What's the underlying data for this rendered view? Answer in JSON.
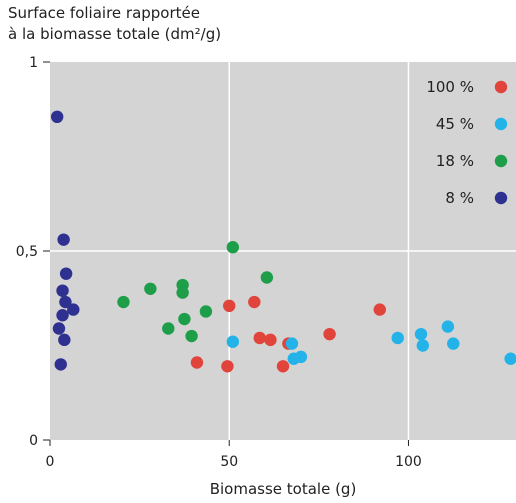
{
  "chart_data": {
    "type": "scatter",
    "ylabel_lines": [
      "Surface foliaire rapportée",
      "à la biomasse totale (dm²/g)"
    ],
    "xlabel": "Biomasse totale (g)",
    "xlim": [
      0,
      130
    ],
    "ylim": [
      0,
      1
    ],
    "x_ticks": [
      0,
      50,
      100
    ],
    "x_tick_labels": [
      "0",
      "50",
      "100"
    ],
    "y_ticks": [
      0,
      0.5,
      1
    ],
    "y_tick_labels": [
      "0",
      "0,5",
      "1"
    ],
    "grid": true,
    "background": "#d4d4d4",
    "legend_position": "top-right",
    "series": [
      {
        "name": "100 %",
        "color": "#e0443a",
        "points": [
          [
            41,
            0.205
          ],
          [
            49.5,
            0.195
          ],
          [
            50,
            0.355
          ],
          [
            57,
            0.365
          ],
          [
            58.5,
            0.27
          ],
          [
            61.5,
            0.265
          ],
          [
            65,
            0.195
          ],
          [
            66.5,
            0.255
          ],
          [
            78,
            0.28
          ],
          [
            92,
            0.345
          ]
        ]
      },
      {
        "name": "45 %",
        "color": "#23b3e8",
        "points": [
          [
            51,
            0.26
          ],
          [
            67.5,
            0.255
          ],
          [
            68,
            0.215
          ],
          [
            70,
            0.22
          ],
          [
            97,
            0.27
          ],
          [
            103.5,
            0.28
          ],
          [
            104,
            0.25
          ],
          [
            111,
            0.3
          ],
          [
            112.5,
            0.255
          ],
          [
            128.5,
            0.215
          ]
        ]
      },
      {
        "name": "18 %",
        "color": "#1f9e4a",
        "points": [
          [
            20.5,
            0.365
          ],
          [
            28,
            0.4
          ],
          [
            33,
            0.295
          ],
          [
            37,
            0.41
          ],
          [
            37,
            0.39
          ],
          [
            37.5,
            0.32
          ],
          [
            39.5,
            0.275
          ],
          [
            43.5,
            0.34
          ],
          [
            51,
            0.51
          ],
          [
            60.5,
            0.43
          ]
        ]
      },
      {
        "name": "8 %",
        "color": "#2e3190",
        "points": [
          [
            2,
            0.855
          ],
          [
            2.5,
            0.295
          ],
          [
            3,
            0.2
          ],
          [
            3.5,
            0.395
          ],
          [
            3.5,
            0.33
          ],
          [
            3.8,
            0.53
          ],
          [
            4,
            0.265
          ],
          [
            4.3,
            0.365
          ],
          [
            4.5,
            0.44
          ],
          [
            6.5,
            0.345
          ]
        ]
      }
    ]
  }
}
